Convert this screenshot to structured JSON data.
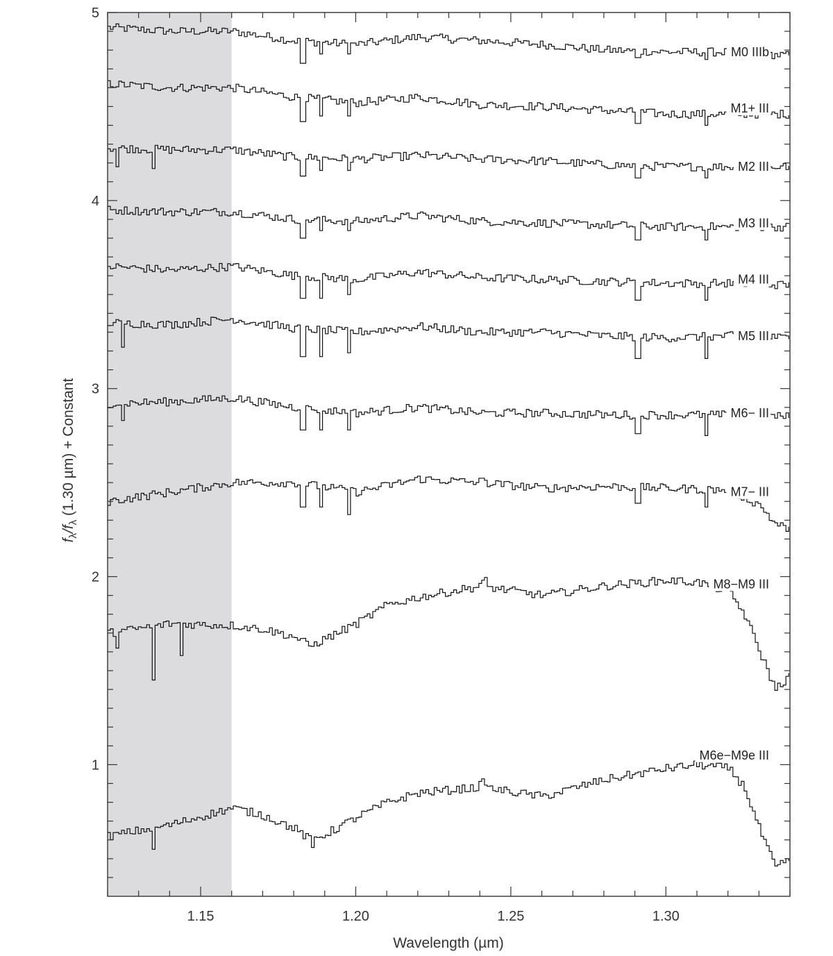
{
  "chart_data": {
    "type": "line",
    "xlabel": "Wavelength (µm)",
    "ylabel_parts": [
      "f",
      "λ",
      "/f",
      "λ",
      " (1.30 µm) + Constant"
    ],
    "xlim": [
      1.12,
      1.34
    ],
    "ylim": [
      0.3,
      5.0
    ],
    "x_ticks": [
      "1.15",
      "1.20",
      "1.25",
      "1.30"
    ],
    "x_tick_values": [
      1.15,
      1.2,
      1.25,
      1.3
    ],
    "y_ticks": [
      "1",
      "2",
      "3",
      "4",
      "5"
    ],
    "y_tick_values": [
      1,
      2,
      3,
      4,
      5
    ],
    "shaded_region": {
      "x": [
        1.12,
        1.16
      ],
      "color": "#dcdcde"
    },
    "line_color": "#111111",
    "series": [
      {
        "name": "M0 IIIb",
        "label_y": 4.79,
        "x": [
          1.12,
          1.14,
          1.16,
          1.18,
          1.2,
          1.22,
          1.24,
          1.26,
          1.28,
          1.3,
          1.32,
          1.34
        ],
        "values": [
          4.92,
          4.9,
          4.9,
          4.85,
          4.83,
          4.87,
          4.85,
          4.83,
          4.8,
          4.79,
          4.79,
          4.77
        ],
        "dips": [
          [
            1.1825,
            4.73
          ],
          [
            1.1885,
            4.78
          ],
          [
            1.1975,
            4.78
          ],
          [
            1.2905,
            4.76
          ],
          [
            1.3125,
            4.75
          ]
        ]
      },
      {
        "name": "M1+ III",
        "label_y": 4.49,
        "x": [
          1.12,
          1.14,
          1.16,
          1.18,
          1.2,
          1.22,
          1.24,
          1.26,
          1.28,
          1.3,
          1.32,
          1.34
        ],
        "values": [
          4.62,
          4.6,
          4.6,
          4.55,
          4.52,
          4.55,
          4.51,
          4.5,
          4.48,
          4.46,
          4.46,
          4.46
        ],
        "dips": [
          [
            1.1825,
            4.42
          ],
          [
            1.1885,
            4.45
          ],
          [
            1.1975,
            4.45
          ],
          [
            1.2905,
            4.41
          ],
          [
            1.3125,
            4.4
          ]
        ]
      },
      {
        "name": "M2 III",
        "label_y": 4.18,
        "x": [
          1.12,
          1.14,
          1.16,
          1.18,
          1.2,
          1.22,
          1.24,
          1.26,
          1.28,
          1.3,
          1.32,
          1.34
        ],
        "values": [
          4.28,
          4.27,
          4.27,
          4.23,
          4.22,
          4.24,
          4.22,
          4.21,
          4.19,
          4.18,
          4.18,
          4.18
        ],
        "dips": [
          [
            1.1225,
            4.18
          ],
          [
            1.1345,
            4.17
          ],
          [
            1.1825,
            4.13
          ],
          [
            1.1885,
            4.16
          ],
          [
            1.1975,
            4.16
          ],
          [
            1.2905,
            4.12
          ],
          [
            1.3125,
            4.12
          ]
        ]
      },
      {
        "name": "M3 III",
        "label_y": 3.88,
        "x": [
          1.12,
          1.14,
          1.16,
          1.18,
          1.2,
          1.22,
          1.24,
          1.26,
          1.28,
          1.3,
          1.32,
          1.34
        ],
        "values": [
          3.95,
          3.94,
          3.94,
          3.9,
          3.89,
          3.92,
          3.89,
          3.88,
          3.87,
          3.86,
          3.86,
          3.86
        ],
        "dips": [
          [
            1.1825,
            3.8
          ],
          [
            1.1885,
            3.84
          ],
          [
            1.1975,
            3.84
          ],
          [
            1.2905,
            3.79
          ],
          [
            1.3125,
            3.79
          ]
        ]
      },
      {
        "name": "M4 III",
        "label_y": 3.58,
        "x": [
          1.12,
          1.14,
          1.16,
          1.18,
          1.2,
          1.22,
          1.24,
          1.26,
          1.28,
          1.3,
          1.32,
          1.34
        ],
        "values": [
          3.65,
          3.63,
          3.65,
          3.6,
          3.58,
          3.62,
          3.59,
          3.58,
          3.57,
          3.56,
          3.56,
          3.55
        ],
        "dips": [
          [
            1.1825,
            3.48
          ],
          [
            1.1885,
            3.48
          ],
          [
            1.1975,
            3.5
          ],
          [
            1.2905,
            3.47
          ],
          [
            1.3125,
            3.47
          ]
        ]
      },
      {
        "name": "M5 III",
        "label_y": 3.28,
        "x": [
          1.12,
          1.14,
          1.16,
          1.18,
          1.2,
          1.22,
          1.24,
          1.26,
          1.28,
          1.3,
          1.32,
          1.34
        ],
        "values": [
          3.35,
          3.34,
          3.37,
          3.32,
          3.3,
          3.33,
          3.3,
          3.3,
          3.28,
          3.27,
          3.28,
          3.27
        ],
        "dips": [
          [
            1.1245,
            3.22
          ],
          [
            1.1825,
            3.17
          ],
          [
            1.1885,
            3.17
          ],
          [
            1.1975,
            3.19
          ],
          [
            1.2905,
            3.16
          ],
          [
            1.3125,
            3.16
          ]
        ]
      },
      {
        "name": "M6− III",
        "label_y": 2.87,
        "x": [
          1.12,
          1.14,
          1.16,
          1.18,
          1.2,
          1.22,
          1.24,
          1.26,
          1.28,
          1.3,
          1.32,
          1.34
        ],
        "values": [
          2.92,
          2.93,
          2.95,
          2.9,
          2.87,
          2.9,
          2.87,
          2.87,
          2.86,
          2.86,
          2.86,
          2.85
        ],
        "dips": [
          [
            1.1245,
            2.83
          ],
          [
            1.1825,
            2.78
          ],
          [
            1.1885,
            2.78
          ],
          [
            1.1975,
            2.78
          ],
          [
            1.2905,
            2.76
          ],
          [
            1.3125,
            2.75
          ]
        ]
      },
      {
        "name": "M7− III",
        "label_y": 2.45,
        "x": [
          1.12,
          1.14,
          1.16,
          1.18,
          1.2,
          1.22,
          1.24,
          1.26,
          1.28,
          1.3,
          1.32,
          1.33,
          1.335,
          1.34
        ],
        "values": [
          2.4,
          2.45,
          2.5,
          2.5,
          2.45,
          2.52,
          2.5,
          2.47,
          2.48,
          2.47,
          2.46,
          2.38,
          2.28,
          2.25
        ],
        "dips": [
          [
            1.1825,
            2.37
          ],
          [
            1.1885,
            2.37
          ],
          [
            1.1975,
            2.33
          ],
          [
            1.2905,
            2.39
          ],
          [
            1.3125,
            2.37
          ]
        ],
        "jumps": [
          [
            1.242,
            0.07
          ]
        ]
      },
      {
        "name": "M8−M9 III",
        "label_y": 1.96,
        "x": [
          1.12,
          1.14,
          1.16,
          1.17,
          1.18,
          1.185,
          1.19,
          1.2,
          1.21,
          1.22,
          1.24,
          1.26,
          1.28,
          1.3,
          1.31,
          1.32,
          1.325,
          1.33,
          1.335,
          1.34
        ],
        "values": [
          1.7,
          1.75,
          1.74,
          1.72,
          1.68,
          1.63,
          1.67,
          1.75,
          1.85,
          1.89,
          1.95,
          1.9,
          1.95,
          1.98,
          1.97,
          1.92,
          1.8,
          1.6,
          1.4,
          1.48
        ],
        "dips": [
          [
            1.1345,
            1.45
          ],
          [
            1.1435,
            1.58
          ],
          [
            1.1225,
            1.62
          ]
        ],
        "jumps": [
          [
            1.242,
            0.12
          ]
        ]
      },
      {
        "name": "M6e−M9e III",
        "label_y": 1.05,
        "x": [
          1.12,
          1.14,
          1.16,
          1.17,
          1.18,
          1.185,
          1.19,
          1.2,
          1.21,
          1.22,
          1.24,
          1.26,
          1.28,
          1.3,
          1.31,
          1.32,
          1.325,
          1.33,
          1.335,
          1.34
        ],
        "values": [
          0.62,
          0.68,
          0.77,
          0.73,
          0.66,
          0.6,
          0.63,
          0.72,
          0.8,
          0.85,
          0.88,
          0.83,
          0.92,
          0.98,
          1.0,
          0.98,
          0.88,
          0.65,
          0.45,
          0.5
        ],
        "dips": [
          [
            1.1345,
            0.55
          ],
          [
            1.1855,
            0.56
          ]
        ],
        "jumps": [
          [
            1.242,
            0.15
          ]
        ]
      }
    ]
  }
}
